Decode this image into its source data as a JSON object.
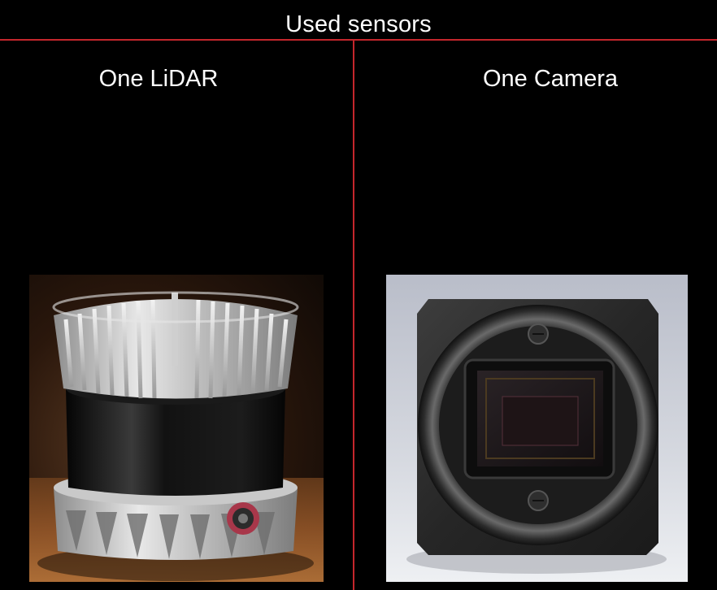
{
  "page": {
    "title": "Used sensors"
  },
  "columns": [
    {
      "title": "One LiDAR",
      "image_subject": "lidar-sensor"
    },
    {
      "title": "One Camera",
      "image_subject": "industrial-camera"
    }
  ],
  "colors": {
    "background": "#000000",
    "divider": "#c4262c",
    "text": "#ffffff"
  }
}
